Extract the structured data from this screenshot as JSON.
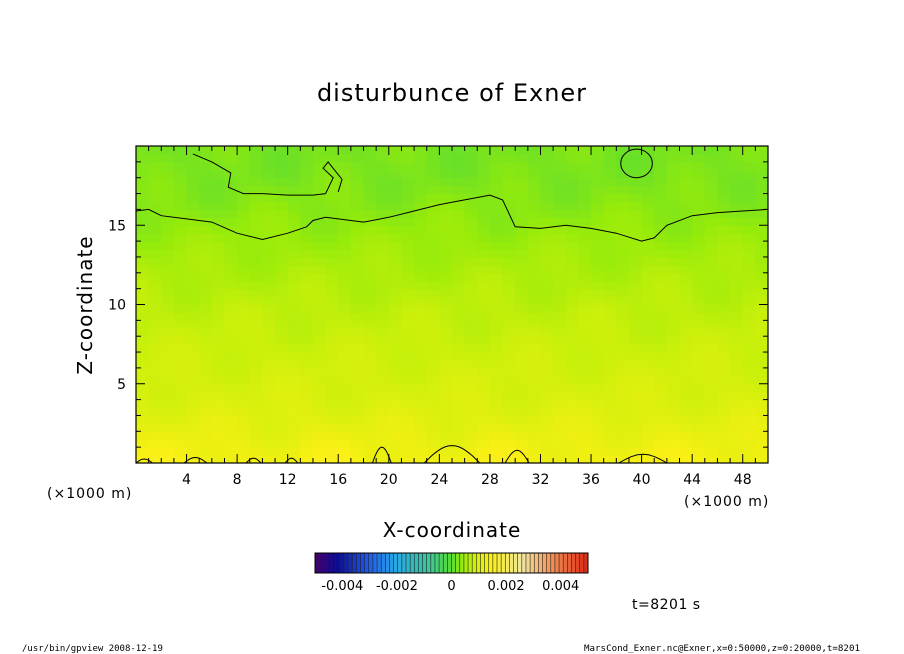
{
  "chart_data": {
    "type": "heatmap",
    "title": "disturbunce of Exner",
    "xlabel": "X-coordinate",
    "ylabel": "Z-coordinate",
    "x_unit": "(×1000 m)",
    "y_unit": "(×1000 m)",
    "xlim": [
      0,
      50
    ],
    "ylim": [
      0,
      20
    ],
    "x_ticks": [
      4,
      8,
      12,
      16,
      20,
      24,
      28,
      32,
      36,
      40,
      44,
      48
    ],
    "y_ticks": [
      5,
      10,
      15
    ],
    "colorbar": {
      "range": [
        -0.005,
        0.005
      ],
      "tick_labels": [
        "-0.004",
        "-0.002",
        "0",
        "0.002",
        "0.004"
      ],
      "tick_values": [
        -0.004,
        -0.002,
        0,
        0.002,
        0.004
      ]
    },
    "field_profile": {
      "z": [
        0,
        2,
        4,
        6,
        8,
        10,
        12,
        14,
        16,
        18,
        20
      ],
      "value": [
        0.0013,
        0.00115,
        0.001,
        0.0009,
        0.0008,
        0.0007,
        0.00058,
        0.00045,
        0.00032,
        0.00022,
        0.0002
      ]
    },
    "contour_upper": {
      "x": [
        0,
        1,
        2,
        4,
        6,
        8,
        10,
        12,
        13.5,
        14,
        15,
        16,
        17,
        18,
        20,
        22,
        24,
        26,
        28,
        29,
        30,
        32,
        34,
        36,
        38,
        40,
        41,
        42,
        44,
        46,
        48,
        50
      ],
      "z": [
        15.9,
        16.0,
        15.6,
        15.4,
        15.2,
        14.5,
        14.1,
        14.5,
        14.9,
        15.3,
        15.5,
        15.4,
        15.3,
        15.2,
        15.5,
        15.9,
        16.3,
        16.6,
        16.9,
        16.6,
        14.9,
        14.8,
        15.0,
        14.8,
        14.5,
        14.0,
        14.2,
        15.0,
        15.6,
        15.8,
        15.9,
        16.0
      ]
    },
    "contour_top": {
      "x": [
        4.5,
        6,
        7.5,
        7.3,
        8.5,
        10,
        12,
        14,
        15,
        15.6,
        14.8,
        15.2,
        16.3,
        16.0
      ],
      "z": [
        19.5,
        19.0,
        18.3,
        17.4,
        17.0,
        17.0,
        16.9,
        16.9,
        17.0,
        18.0,
        18.6,
        19.0,
        17.9,
        17.1
      ]
    },
    "contour_ellipse": {
      "cx": 39.6,
      "cz": 18.9,
      "rx": 1.25,
      "rz": 0.9
    },
    "contour_bumps": [
      {
        "x0": 0.0,
        "x1": 1.3,
        "h": 0.25
      },
      {
        "x0": 3.8,
        "x1": 5.6,
        "h": 0.35
      },
      {
        "x0": 8.7,
        "x1": 9.9,
        "h": 0.3
      },
      {
        "x0": 11.8,
        "x1": 12.8,
        "h": 0.3
      },
      {
        "x0": 18.7,
        "x1": 20.2,
        "h": 1.0
      },
      {
        "x0": 22.8,
        "x1": 27.2,
        "h": 1.1
      },
      {
        "x0": 29.2,
        "x1": 31.1,
        "h": 0.8
      },
      {
        "x0": 38.2,
        "x1": 42.0,
        "h": 0.55
      }
    ],
    "annotation": "t=8201 s"
  },
  "footer": {
    "left": "/usr/bin/gpview   2008-12-19",
    "right": "MarsCond_Exner.nc@Exner,x=0:50000,z=0:20000,t=8201"
  }
}
